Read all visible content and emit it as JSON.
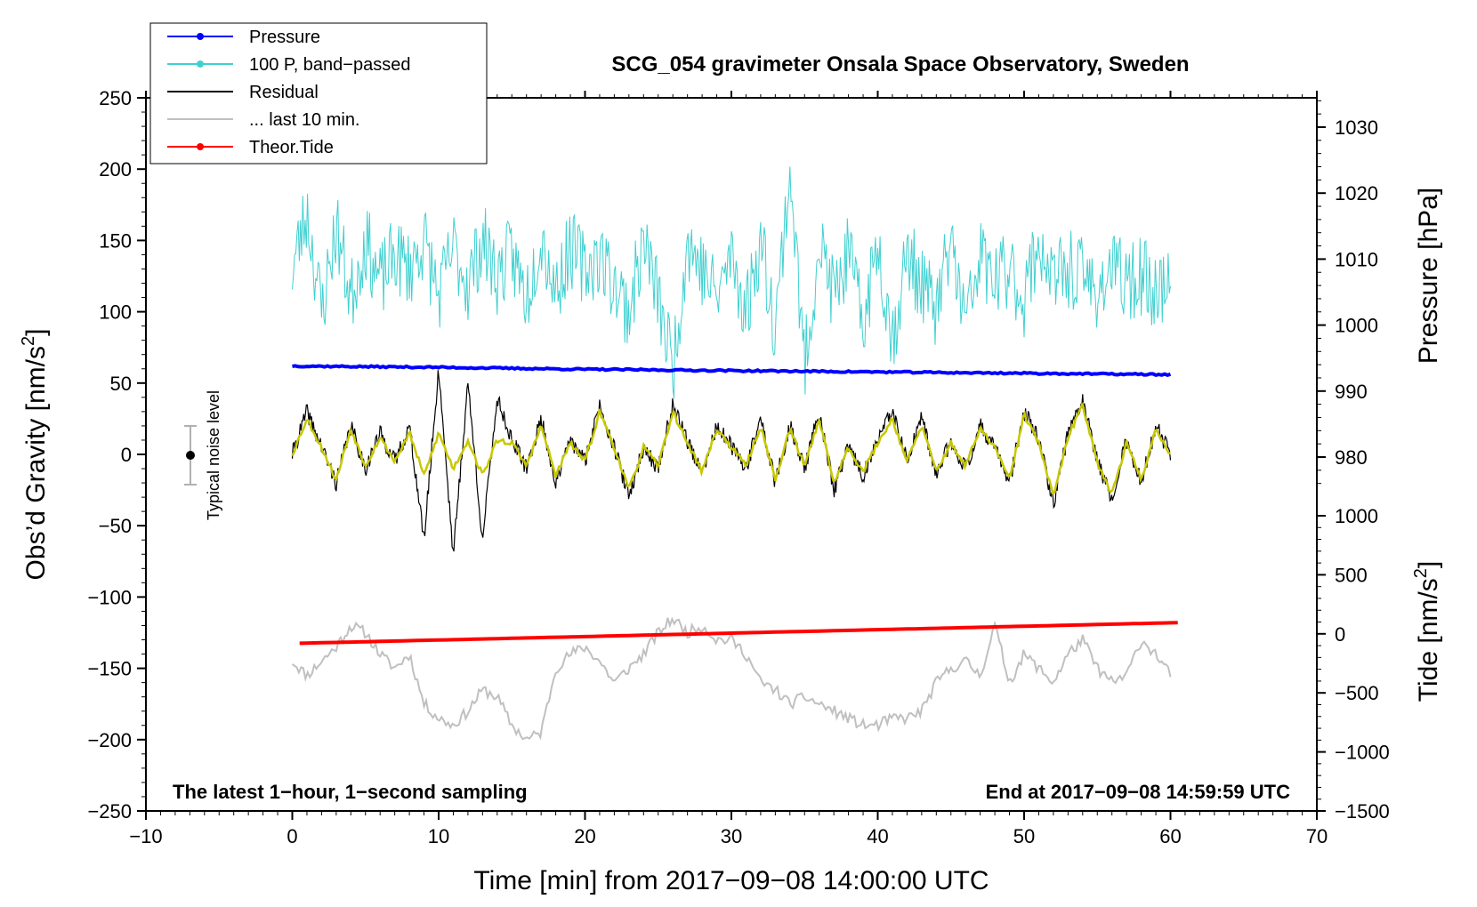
{
  "chart_data": {
    "type": "line",
    "title": "SCG_054 gravimeter Onsala Space Observatory, Sweden",
    "xlabel": "Time [min] from 2017−09−08 14:00:00 UTC",
    "ylabel_left": "Obs’d Gravity [nm/s",
    "ylabel_left_sup": "2",
    "ylabel_left_close": "]",
    "ylabel_right_pressure": "Pressure [hPa]",
    "ylabel_right_tide": "Tide [nm/s",
    "ylabel_right_tide_sup": "2",
    "ylabel_right_tide_close": "]",
    "xlim": [
      -10,
      70
    ],
    "ylim_left": [
      -250,
      250
    ],
    "xticks": [
      "−10",
      "0",
      "10",
      "20",
      "30",
      "40",
      "50",
      "60",
      "70"
    ],
    "yticks_left": [
      "250",
      "200",
      "150",
      "100",
      "50",
      "0",
      "−50",
      "−100",
      "−150",
      "−200",
      "−250"
    ],
    "yticks_pressure": [
      "1030",
      "1020",
      "1010",
      "1000",
      "990",
      "980"
    ],
    "yticks_tide": [
      "1000",
      "500",
      "0",
      "−500",
      "−1000",
      "−1500"
    ],
    "note_left": "The latest 1−hour, 1−second sampling",
    "note_right": "End at 2017−09−08 14:59:59 UTC",
    "noise_label": "Typical noise level",
    "legend": [
      {
        "label": "Pressure",
        "color": "#0000ff",
        "marker": true
      },
      {
        "label": "100 P, band−passed",
        "color": "#40d0d0",
        "marker": true
      },
      {
        "label": "Residual",
        "color": "#000000",
        "marker": false
      },
      {
        "label": "... last 10 min.",
        "color": "#c0c0c0",
        "marker": false
      },
      {
        "label": "Theor.Tide",
        "color": "#ff0000",
        "marker": true
      }
    ],
    "series": [
      {
        "name": "Pressure",
        "axis": "pressure_hPa",
        "color": "#0000ff",
        "x": [
          0,
          10,
          20,
          30,
          40,
          50,
          60
        ],
        "values": [
          993.8,
          993.6,
          993.3,
          993.1,
          992.9,
          992.7,
          992.5
        ]
      },
      {
        "name": "Theor.Tide",
        "axis": "tide_nm_s2",
        "color": "#ff0000",
        "x": [
          0.5,
          60.5
        ],
        "values": [
          -80,
          95
        ]
      },
      {
        "name": "... last 10 min.",
        "axis": "gravity_nm_s2",
        "color": "#c0c0c0",
        "x": [
          0,
          1,
          2,
          3,
          4,
          5,
          6,
          7,
          8,
          9,
          10,
          11,
          12,
          13,
          14,
          15,
          16,
          17,
          18,
          19,
          20,
          21,
          22,
          23,
          24,
          25,
          26,
          27,
          28,
          29,
          30,
          31,
          32,
          33,
          34,
          35,
          36,
          37,
          38,
          39,
          40,
          41,
          42,
          43,
          44,
          45,
          46,
          47,
          48,
          49,
          50,
          51,
          52,
          53,
          54,
          55,
          56,
          57,
          58,
          59,
          60
        ],
        "values": [
          -145,
          -155,
          -145,
          -135,
          -120,
          -125,
          -140,
          -150,
          -140,
          -175,
          -185,
          -190,
          -180,
          -165,
          -170,
          -190,
          -200,
          -195,
          -150,
          -140,
          -135,
          -145,
          -160,
          -150,
          -140,
          -125,
          -115,
          -125,
          -120,
          -130,
          -130,
          -140,
          -160,
          -165,
          -175,
          -170,
          -175,
          -180,
          -185,
          -190,
          -190,
          -185,
          -185,
          -180,
          -160,
          -150,
          -145,
          -155,
          -120,
          -160,
          -140,
          -150,
          -160,
          -140,
          -130,
          -150,
          -160,
          -155,
          -130,
          -140,
          -155
        ]
      },
      {
        "name": "Residual",
        "axis": "gravity_nm_s2",
        "color": "#000000",
        "x": [
          0,
          1,
          2,
          3,
          4,
          5,
          6,
          7,
          8,
          9,
          10,
          11,
          12,
          13,
          14,
          15,
          16,
          17,
          18,
          19,
          20,
          21,
          22,
          23,
          24,
          25,
          26,
          27,
          28,
          29,
          30,
          31,
          32,
          33,
          34,
          35,
          36,
          37,
          38,
          39,
          40,
          41,
          42,
          43,
          44,
          45,
          46,
          47,
          48,
          49,
          50,
          51,
          52,
          53,
          54,
          55,
          56,
          57,
          58,
          59,
          60
        ],
        "values": [
          0,
          30,
          5,
          -20,
          20,
          -10,
          15,
          -5,
          20,
          -60,
          60,
          -70,
          50,
          -60,
          40,
          10,
          -10,
          25,
          -20,
          10,
          -5,
          35,
          5,
          -30,
          5,
          -10,
          35,
          10,
          -15,
          20,
          5,
          -10,
          25,
          -20,
          20,
          -10,
          30,
          -25,
          5,
          -15,
          10,
          30,
          -5,
          25,
          -15,
          10,
          -10,
          20,
          5,
          -20,
          30,
          10,
          -35,
          15,
          40,
          -5,
          -30,
          10,
          -20,
          20,
          0
        ]
      },
      {
        "name": "Residual (smoothed)",
        "axis": "gravity_nm_s2",
        "color": "#c8c800",
        "x": [
          0,
          1,
          2,
          3,
          4,
          5,
          6,
          7,
          8,
          9,
          10,
          11,
          12,
          13,
          14,
          15,
          16,
          17,
          18,
          19,
          20,
          21,
          22,
          23,
          24,
          25,
          26,
          27,
          28,
          29,
          30,
          31,
          32,
          33,
          34,
          35,
          36,
          37,
          38,
          39,
          40,
          41,
          42,
          43,
          44,
          45,
          46,
          47,
          48,
          49,
          50,
          51,
          52,
          53,
          54,
          55,
          56,
          57,
          58,
          59,
          60
        ],
        "values": [
          0,
          25,
          5,
          -18,
          18,
          -8,
          12,
          -5,
          15,
          -15,
          15,
          -10,
          10,
          -15,
          10,
          8,
          -8,
          20,
          -15,
          8,
          -5,
          30,
          5,
          -25,
          5,
          -8,
          30,
          8,
          -12,
          18,
          5,
          -8,
          20,
          -18,
          18,
          -8,
          25,
          -20,
          5,
          -12,
          8,
          25,
          -5,
          20,
          -12,
          8,
          -8,
          18,
          5,
          -18,
          28,
          8,
          -30,
          12,
          35,
          -5,
          -28,
          8,
          -18,
          18,
          0
        ]
      },
      {
        "name": "100 P, band−passed",
        "axis": "gravity_nm_s2",
        "color": "#40d0d0",
        "x": [
          0,
          1,
          2,
          3,
          4,
          5,
          6,
          7,
          8,
          9,
          10,
          11,
          12,
          13,
          14,
          15,
          16,
          17,
          18,
          19,
          20,
          21,
          22,
          23,
          24,
          25,
          26,
          27,
          28,
          29,
          30,
          31,
          32,
          33,
          34,
          35,
          36,
          37,
          38,
          39,
          40,
          41,
          42,
          43,
          44,
          45,
          46,
          47,
          48,
          49,
          50,
          51,
          52,
          53,
          54,
          55,
          56,
          57,
          58,
          59,
          60
        ],
        "values": [
          130,
          170,
          100,
          160,
          110,
          150,
          120,
          140,
          130,
          150,
          110,
          145,
          120,
          150,
          125,
          140,
          110,
          155,
          115,
          145,
          130,
          140,
          120,
          100,
          150,
          110,
          60,
          150,
          130,
          110,
          140,
          100,
          150,
          90,
          200,
          60,
          150,
          110,
          140,
          90,
          150,
          80,
          140,
          120,
          100,
          150,
          90,
          140,
          120,
          130,
          110,
          150,
          120,
          130,
          125,
          115,
          130,
          120,
          125,
          115,
          120
        ]
      }
    ]
  }
}
